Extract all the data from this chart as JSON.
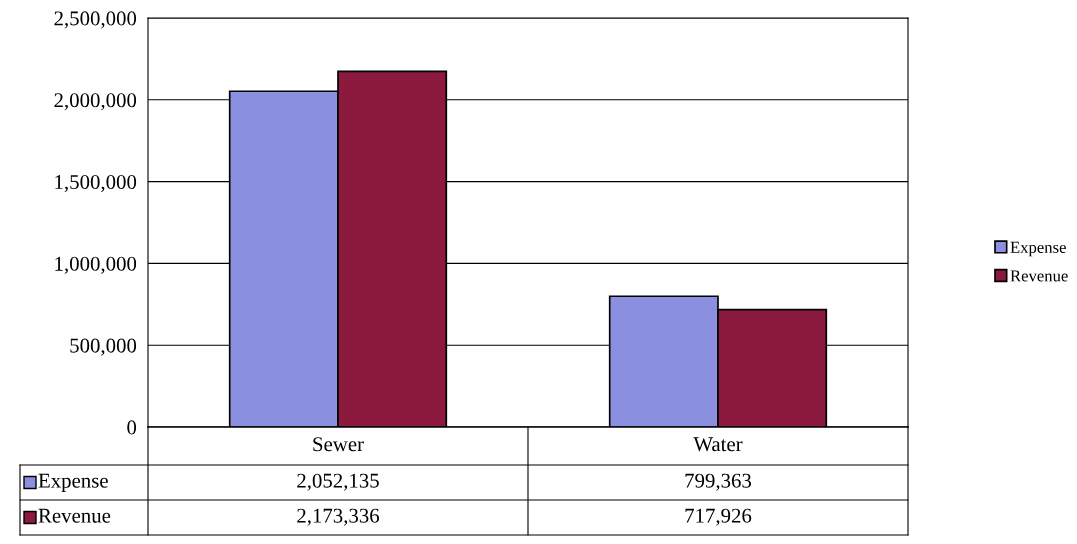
{
  "chart_data": {
    "type": "bar",
    "categories": [
      "Sewer",
      "Water"
    ],
    "series": [
      {
        "name": "Expense",
        "color": "#8b8fe0",
        "values": [
          2052135,
          799363
        ],
        "value_labels": [
          "2,052,135",
          "799,363"
        ]
      },
      {
        "name": "Revenue",
        "color": "#8b1a3e",
        "values": [
          2173336,
          717926
        ],
        "value_labels": [
          "2,173,336",
          "717,926"
        ]
      }
    ],
    "ylim": [
      0,
      2500000
    ],
    "yticks": [
      {
        "value": 0,
        "label": "0"
      },
      {
        "value": 500000,
        "label": "500,000"
      },
      {
        "value": 1000000,
        "label": "1,000,000"
      },
      {
        "value": 1500000,
        "label": "1,500,000"
      },
      {
        "value": 2000000,
        "label": "2,000,000"
      },
      {
        "value": 2500000,
        "label": "2,500,000"
      }
    ],
    "grid": "y",
    "legend": "right"
  }
}
